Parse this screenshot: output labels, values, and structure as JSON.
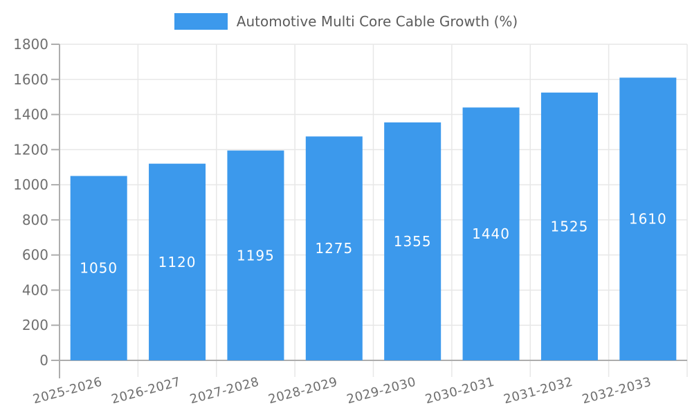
{
  "chart_data": {
    "type": "bar",
    "legend": {
      "label": "Automotive Multi Core Cable Growth (%)",
      "position": "top-center"
    },
    "categories": [
      "2025-2026",
      "2026-2027",
      "2027-2028",
      "2028-2029",
      "2029-2030",
      "2030-2031",
      "2031-2032",
      "2032-2033"
    ],
    "series": [
      {
        "name": "Automotive Multi Core Cable Growth (%)",
        "values": [
          1050,
          1120,
          1195,
          1275,
          1355,
          1440,
          1525,
          1610
        ],
        "color": "#3C99EC"
      }
    ],
    "value_labels": [
      1050,
      1120,
      1195,
      1275,
      1355,
      1440,
      1525,
      1610
    ],
    "xlabel": "",
    "ylabel": "",
    "ylim": [
      0,
      1800
    ],
    "ytick_step": 200,
    "yticks": [
      0,
      200,
      400,
      600,
      800,
      1000,
      1200,
      1400,
      1600,
      1800
    ],
    "grid": true,
    "legend_position": "top-center",
    "value_label_position": "inside-center"
  },
  "colors": {
    "bar": "#3C99EC",
    "axis_line": "#ADADAD",
    "grid_line": "#E7E7E7",
    "axis_text": "#6F6F6F",
    "legend_text": "#5C5C5C",
    "value_label_text": "#FFFFFF",
    "background": "#FFFFFF"
  }
}
